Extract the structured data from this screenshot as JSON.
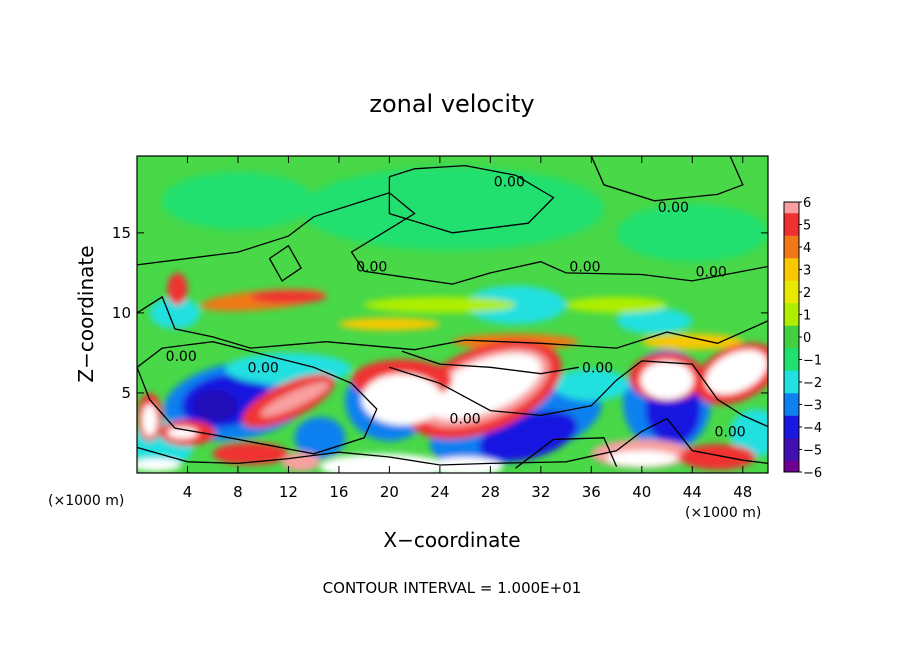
{
  "chart_data": {
    "type": "heatmap",
    "title": "zonal velocity",
    "xlabel": "X−coordinate",
    "ylabel": "Z−coordinate",
    "x_unit_left": "(×1000 m)",
    "x_unit_right": "(×1000 m)",
    "footer": "CONTOUR INTERVAL = 1.000E+01",
    "xlim": [
      0,
      50
    ],
    "ylim": [
      0,
      19.8
    ],
    "x_ticks": [
      4,
      8,
      12,
      16,
      20,
      24,
      28,
      32,
      36,
      40,
      44,
      48
    ],
    "y_ticks": [
      5,
      10,
      15
    ],
    "colorbar": {
      "ticks": [
        "6",
        "5",
        "4",
        "3",
        "2",
        "1",
        "0",
        "−1",
        "−2",
        "−3",
        "−4",
        "−5",
        "−6"
      ],
      "colors": [
        "#f8a0a0",
        "#f03030",
        "#f07818",
        "#f8c800",
        "#e8e800",
        "#b0ee00",
        "#40d040",
        "#20e070",
        "#20e0e0",
        "#1080f0",
        "#1818e0",
        "#4010b0",
        "#700090"
      ]
    },
    "contour_labels": [
      {
        "text": "0.00",
        "x": 29.5,
        "y": 18.2
      },
      {
        "text": "0.00",
        "x": 42.5,
        "y": 16.6
      },
      {
        "text": "0.00",
        "x": 18.6,
        "y": 12.9
      },
      {
        "text": "0.00",
        "x": 35.5,
        "y": 12.9
      },
      {
        "text": "0.00",
        "x": 45.5,
        "y": 12.6
      },
      {
        "text": "0.00",
        "x": 3.5,
        "y": 7.3
      },
      {
        "text": "0.00",
        "x": 10.0,
        "y": 6.6
      },
      {
        "text": "0.00",
        "x": 36.5,
        "y": 6.6
      },
      {
        "text": "0.00",
        "x": 26.0,
        "y": 3.4
      },
      {
        "text": "0.00",
        "x": 47.0,
        "y": 2.6
      }
    ],
    "contour_level": 0,
    "vmin": -6,
    "vmax": 6
  }
}
